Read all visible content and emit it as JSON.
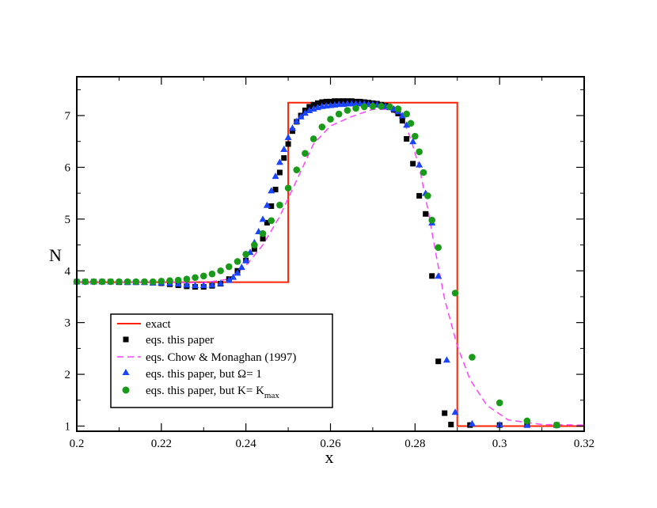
{
  "chart_data": {
    "type": "line",
    "xlabel": "x",
    "ylabel": "N",
    "xlim": [
      0.2,
      0.32
    ],
    "ylim": [
      0.9,
      7.75
    ],
    "x_ticks": [
      0.2,
      0.22,
      0.24,
      0.26,
      0.28,
      0.3,
      0.32
    ],
    "x_tick_labels": [
      "0.2",
      "0.22",
      "0.24",
      "0.26",
      "0.28",
      "0.3",
      "0.32"
    ],
    "y_ticks": [
      1,
      2,
      3,
      4,
      5,
      6,
      7
    ],
    "y_tick_labels": [
      "1",
      "2",
      "3",
      "4",
      "5",
      "6",
      "7"
    ],
    "legend_position": "bottom-left",
    "series": [
      {
        "name": "exact",
        "style": "line",
        "color": "#ff2200",
        "x": [
          0.2,
          0.25,
          0.25,
          0.29,
          0.29,
          0.32
        ],
        "y": [
          3.78,
          3.78,
          7.25,
          7.25,
          1.0,
          1.0
        ]
      },
      {
        "name": "eqs. this paper",
        "style": "square",
        "color": "#000000",
        "x": [
          0.2,
          0.202,
          0.204,
          0.206,
          0.208,
          0.21,
          0.212,
          0.214,
          0.216,
          0.218,
          0.22,
          0.222,
          0.224,
          0.226,
          0.228,
          0.23,
          0.232,
          0.234,
          0.236,
          0.238,
          0.24,
          0.242,
          0.244,
          0.245,
          0.246,
          0.247,
          0.248,
          0.249,
          0.25,
          0.251,
          0.252,
          0.253,
          0.254,
          0.255,
          0.256,
          0.257,
          0.258,
          0.259,
          0.26,
          0.261,
          0.262,
          0.263,
          0.264,
          0.265,
          0.266,
          0.267,
          0.268,
          0.269,
          0.27,
          0.271,
          0.272,
          0.273,
          0.274,
          0.275,
          0.276,
          0.277,
          0.278,
          0.2795,
          0.281,
          0.2825,
          0.284,
          0.2855,
          0.287,
          0.2885,
          0.293,
          0.3,
          0.3065,
          0.3135
        ],
        "y": [
          3.79,
          3.79,
          3.79,
          3.79,
          3.79,
          3.78,
          3.78,
          3.78,
          3.78,
          3.77,
          3.76,
          3.74,
          3.72,
          3.7,
          3.69,
          3.69,
          3.71,
          3.75,
          3.84,
          4.0,
          4.2,
          4.42,
          4.62,
          4.93,
          5.25,
          5.57,
          5.9,
          6.18,
          6.45,
          6.7,
          6.88,
          7.0,
          7.1,
          7.17,
          7.21,
          7.24,
          7.26,
          7.27,
          7.27,
          7.28,
          7.28,
          7.28,
          7.28,
          7.28,
          7.27,
          7.27,
          7.26,
          7.25,
          7.24,
          7.23,
          7.21,
          7.19,
          7.16,
          7.11,
          7.04,
          6.9,
          6.55,
          6.07,
          5.45,
          5.1,
          3.9,
          2.25,
          1.25,
          1.03,
          1.02,
          1.02,
          1.02,
          1.02
        ],
        "note": "last points near x=0.283-0.293"
      },
      {
        "name": "eqs. Chow & Monaghan (1997)",
        "style": "dashed",
        "color": "#ff44ff",
        "x": [
          0.2,
          0.22,
          0.23,
          0.236,
          0.24,
          0.244,
          0.248,
          0.252,
          0.256,
          0.26,
          0.265,
          0.27,
          0.274,
          0.277,
          0.279,
          0.281,
          0.283,
          0.285,
          0.287,
          0.29,
          0.293,
          0.297,
          0.302,
          0.31,
          0.32
        ],
        "y": [
          3.79,
          3.78,
          3.77,
          3.84,
          4.1,
          4.5,
          5.05,
          5.75,
          6.45,
          6.8,
          6.98,
          7.12,
          7.12,
          6.95,
          6.55,
          6.0,
          5.2,
          4.3,
          3.45,
          2.55,
          1.9,
          1.4,
          1.12,
          1.03,
          1.02
        ]
      },
      {
        "name": "eqs. this paper, but Ω= 1",
        "style": "triangle",
        "color": "#1a44ff",
        "x": [
          0.2,
          0.202,
          0.204,
          0.206,
          0.208,
          0.21,
          0.212,
          0.214,
          0.216,
          0.218,
          0.22,
          0.222,
          0.224,
          0.226,
          0.228,
          0.23,
          0.232,
          0.234,
          0.236,
          0.237,
          0.238,
          0.239,
          0.24,
          0.241,
          0.242,
          0.243,
          0.244,
          0.245,
          0.246,
          0.247,
          0.248,
          0.249,
          0.25,
          0.251,
          0.252,
          0.253,
          0.254,
          0.255,
          0.256,
          0.257,
          0.258,
          0.259,
          0.26,
          0.261,
          0.262,
          0.263,
          0.264,
          0.265,
          0.266,
          0.267,
          0.268,
          0.269,
          0.27,
          0.271,
          0.272,
          0.273,
          0.274,
          0.275,
          0.276,
          0.277,
          0.278,
          0.2795,
          0.281,
          0.2825,
          0.284,
          0.2855,
          0.2875,
          0.2895,
          0.2935,
          0.3,
          0.3065,
          0.3135
        ],
        "y": [
          3.79,
          3.79,
          3.79,
          3.79,
          3.79,
          3.79,
          3.78,
          3.78,
          3.78,
          3.77,
          3.77,
          3.76,
          3.75,
          3.73,
          3.72,
          3.72,
          3.73,
          3.76,
          3.82,
          3.88,
          3.96,
          4.07,
          4.2,
          4.36,
          4.55,
          4.76,
          5.0,
          5.27,
          5.55,
          5.83,
          6.1,
          6.35,
          6.58,
          6.76,
          6.89,
          6.98,
          7.05,
          7.1,
          7.13,
          7.16,
          7.18,
          7.19,
          7.2,
          7.21,
          7.22,
          7.22,
          7.23,
          7.23,
          7.23,
          7.23,
          7.23,
          7.22,
          7.22,
          7.21,
          7.2,
          7.18,
          7.16,
          7.13,
          7.08,
          7.0,
          6.82,
          6.5,
          6.05,
          5.5,
          4.93,
          3.9,
          2.28,
          1.27,
          1.05,
          1.03,
          1.02,
          1.02
        ]
      },
      {
        "name": "eqs. this paper, but K= K_max",
        "style": "circle",
        "color": "#1a9a1a",
        "x": [
          0.2,
          0.202,
          0.204,
          0.206,
          0.208,
          0.21,
          0.212,
          0.214,
          0.216,
          0.218,
          0.22,
          0.222,
          0.224,
          0.226,
          0.228,
          0.23,
          0.232,
          0.234,
          0.236,
          0.238,
          0.24,
          0.242,
          0.244,
          0.246,
          0.248,
          0.25,
          0.252,
          0.254,
          0.256,
          0.258,
          0.26,
          0.262,
          0.264,
          0.266,
          0.268,
          0.27,
          0.272,
          0.274,
          0.276,
          0.278,
          0.279,
          0.28,
          0.281,
          0.282,
          0.283,
          0.284,
          0.2855,
          0.2895,
          0.2935,
          0.3,
          0.3065,
          0.3135
        ],
        "y": [
          3.79,
          3.79,
          3.79,
          3.79,
          3.79,
          3.79,
          3.79,
          3.79,
          3.79,
          3.79,
          3.8,
          3.81,
          3.82,
          3.84,
          3.87,
          3.9,
          3.94,
          4.0,
          4.08,
          4.18,
          4.32,
          4.5,
          4.72,
          4.97,
          5.27,
          5.6,
          5.95,
          6.27,
          6.55,
          6.78,
          6.93,
          7.03,
          7.1,
          7.14,
          7.17,
          7.18,
          7.18,
          7.17,
          7.13,
          7.03,
          6.85,
          6.6,
          6.3,
          5.9,
          5.45,
          4.98,
          4.45,
          3.57,
          2.33,
          1.45,
          1.1,
          1.02
        ],
        "legend_label_parts": [
          "eqs. this paper, but K= K",
          "max"
        ]
      }
    ]
  },
  "legend": {
    "items": [
      {
        "label": "exact"
      },
      {
        "label": "eqs. this paper"
      },
      {
        "label": "eqs. Chow & Monaghan (1997)"
      },
      {
        "label": "eqs. this paper, but Ω= 1"
      },
      {
        "label": " eqs. this paper, but K= K",
        "sub": "max"
      }
    ]
  }
}
